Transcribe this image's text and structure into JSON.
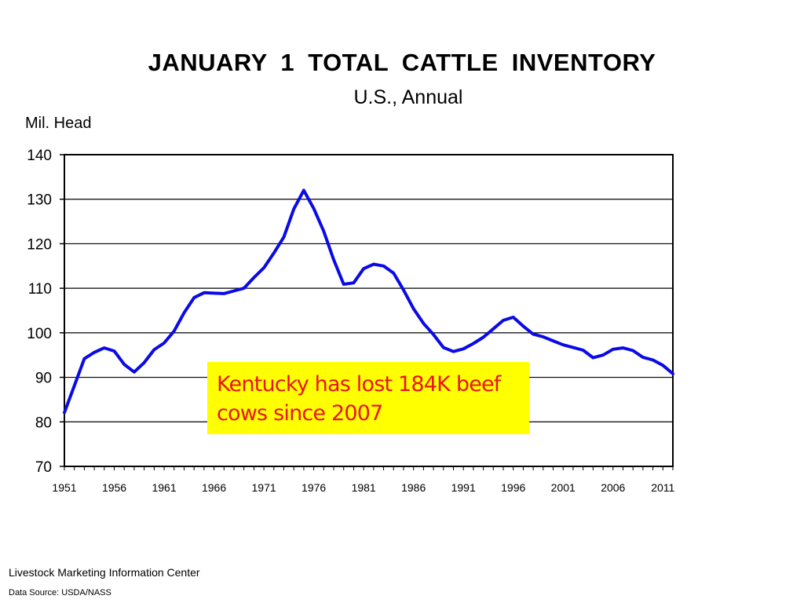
{
  "chart_data": {
    "type": "line",
    "title": "JANUARY  1  TOTAL  CATTLE  INVENTORY",
    "subtitle": "U.S., Annual",
    "ylabel": "Mil. Head",
    "xlabel": "",
    "ylim": [
      70,
      140
    ],
    "yticks": [
      70,
      80,
      90,
      100,
      110,
      120,
      130,
      140
    ],
    "xlim": [
      1951,
      2012
    ],
    "xticks": [
      "1951",
      "1956",
      "1961",
      "1966",
      "1971",
      "1976",
      "1981",
      "1986",
      "1991",
      "1996",
      "2001",
      "2006",
      "2011"
    ],
    "grid": true,
    "color": "#0a0ae6",
    "x": [
      1951,
      1952,
      1953,
      1954,
      1955,
      1956,
      1957,
      1958,
      1959,
      1960,
      1961,
      1962,
      1963,
      1964,
      1965,
      1966,
      1967,
      1968,
      1969,
      1970,
      1971,
      1972,
      1973,
      1974,
      1975,
      1976,
      1977,
      1978,
      1979,
      1980,
      1981,
      1982,
      1983,
      1984,
      1985,
      1986,
      1987,
      1988,
      1989,
      1990,
      1991,
      1992,
      1993,
      1994,
      1995,
      1996,
      1997,
      1998,
      1999,
      2000,
      2001,
      2002,
      2003,
      2004,
      2005,
      2006,
      2007,
      2008,
      2009,
      2010,
      2011,
      2012
    ],
    "values": [
      82.1,
      88.1,
      94.2,
      95.6,
      96.6,
      95.9,
      92.9,
      91.2,
      93.3,
      96.2,
      97.7,
      100.4,
      104.5,
      107.9,
      109.0,
      108.9,
      108.8,
      109.4,
      110.0,
      112.4,
      114.6,
      117.9,
      121.5,
      127.8,
      132.0,
      127.9,
      122.8,
      116.4,
      110.9,
      111.2,
      114.4,
      115.4,
      115.0,
      113.4,
      109.6,
      105.4,
      102.1,
      99.6,
      96.7,
      95.8,
      96.4,
      97.6,
      99.0,
      100.9,
      102.8,
      103.5,
      101.5,
      99.7,
      99.1,
      98.2,
      97.3,
      96.7,
      96.1,
      94.4,
      95.0,
      96.3,
      96.6,
      96.0,
      94.5,
      93.9,
      92.7,
      90.8
    ]
  },
  "callout": {
    "line1": "Kentucky has lost 184K beef",
    "line2": "cows since 2007"
  },
  "footer": {
    "source_org": "Livestock Marketing Information Center",
    "data_source": "Data Source:  USDA/NASS"
  }
}
